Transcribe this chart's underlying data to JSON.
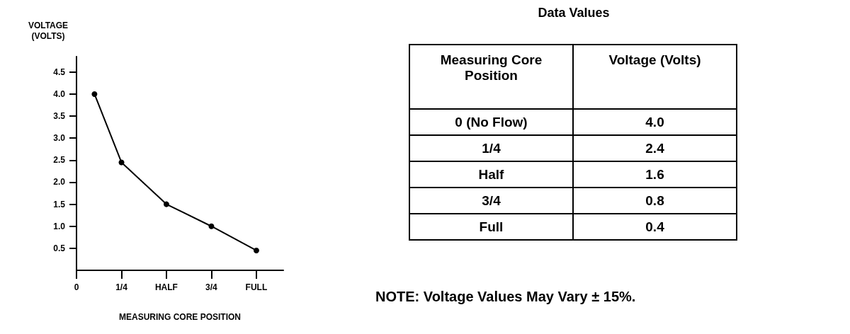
{
  "chart_data": [
    {
      "type": "line",
      "xlabel": "MEASURING CORE POSITION",
      "ylabel": "VOLTAGE (VOLTS)",
      "x": [
        0.1,
        0.25,
        0.5,
        0.75,
        1.0
      ],
      "series": [
        {
          "color": "#000000",
          "values": [
            4.0,
            2.45,
            1.5,
            1.0,
            0.45
          ]
        }
      ],
      "xlim": [
        0,
        1.15
      ],
      "xticks": [
        {
          "value": 0,
          "label": "0"
        },
        {
          "value": 0.25,
          "label": "1/4"
        },
        {
          "value": 0.5,
          "label": "HALF"
        },
        {
          "value": 0.75,
          "label": "3/4"
        },
        {
          "value": 1.0,
          "label": "FULL"
        }
      ],
      "ylim": [
        0,
        4.85
      ],
      "yticks": [
        {
          "value": 0.5,
          "label": "0.5"
        },
        {
          "value": 1,
          "label": "1.0"
        },
        {
          "value": 1.5,
          "label": "1.5"
        },
        {
          "value": 2,
          "label": "2.0"
        },
        {
          "value": 2.5,
          "label": "2.5"
        },
        {
          "value": 3,
          "label": "3.0"
        },
        {
          "value": 3.5,
          "label": "3.5"
        },
        {
          "value": 4,
          "label": "4.0"
        },
        {
          "value": 4.5,
          "label": "4.5"
        }
      ],
      "marker": "circle",
      "line_style": "solid"
    },
    {
      "type": "other",
      "title": "Data Values",
      "xlabel": "Measuring Core Position",
      "ylabel": "Voltage (Volts)",
      "categories": [
        "0 (No Flow)",
        "1/4",
        "Half",
        "3/4",
        "Full"
      ],
      "values": [
        4.0,
        2.4,
        1.6,
        0.8,
        0.4
      ],
      "value_labels": [
        "4.0",
        "2.4",
        "1.6",
        "0.8",
        "0.4"
      ],
      "annotations": [
        "NOTE: Voltage Values May Vary ± 15%."
      ]
    }
  ]
}
